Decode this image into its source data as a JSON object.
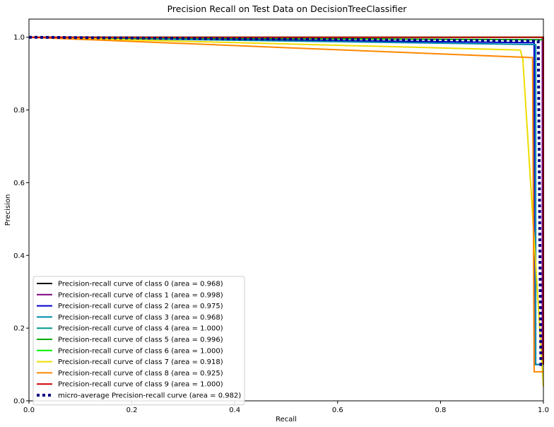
{
  "chart_data": {
    "type": "line",
    "title": "Precision Recall on Test Data on DecisionTreeClassifier",
    "xlabel": "Recall",
    "ylabel": "Precision",
    "xlim": [
      0.0,
      1.0
    ],
    "ylim": [
      0.0,
      1.05
    ],
    "xticks": [
      "0.0",
      "0.2",
      "0.4",
      "0.6",
      "0.8",
      "1.0"
    ],
    "yticks": [
      "0.0",
      "0.2",
      "0.4",
      "0.6",
      "0.8",
      "1.0"
    ],
    "grid": false,
    "legend_position": "lower-left",
    "series": [
      {
        "name": "Precision-recall curve of class 0 (area = 0.968)",
        "color": "#000000",
        "dash": "solid",
        "x": [
          0.0,
          0.0,
          1.0,
          1.0
        ],
        "y": [
          1.0,
          1.0,
          1.0,
          0.1
        ]
      },
      {
        "name": "Precision-recall curve of class 1 (area = 0.998)",
        "color": "#7f007f",
        "dash": "solid",
        "x": [
          0.0,
          0.0,
          0.998,
          0.998,
          1.0
        ],
        "y": [
          1.0,
          1.0,
          1.0,
          0.1,
          0.1
        ]
      },
      {
        "name": "Precision-recall curve of class 2 (area = 0.975)",
        "color": "#0000cc",
        "dash": "solid",
        "x": [
          0.0,
          0.0,
          0.98,
          0.982,
          0.982,
          1.0
        ],
        "y": [
          1.0,
          1.0,
          0.985,
          0.985,
          0.1,
          0.1
        ]
      },
      {
        "name": "Precision-recall curve of class 3 (area = 0.968)",
        "color": "#0088aa",
        "dash": "solid",
        "x": [
          0.0,
          0.0,
          0.983,
          0.985,
          0.985,
          1.0
        ],
        "y": [
          1.0,
          1.0,
          0.98,
          0.98,
          0.1,
          0.1
        ]
      },
      {
        "name": "Precision-recall curve of class 4 (area = 1.000)",
        "color": "#009988",
        "dash": "solid",
        "x": [
          0.0,
          0.0,
          1.0,
          1.0
        ],
        "y": [
          1.0,
          1.0,
          1.0,
          0.1
        ]
      },
      {
        "name": "Precision-recall curve of class 5 (area = 0.996)",
        "color": "#00aa00",
        "dash": "solid",
        "x": [
          0.0,
          0.0,
          1.0,
          1.0
        ],
        "y": [
          1.0,
          1.0,
          0.993,
          0.1
        ]
      },
      {
        "name": "Precision-recall curve of class 6 (area = 1.000)",
        "color": "#00ee00",
        "dash": "solid",
        "x": [
          0.0,
          0.0,
          1.0,
          1.0
        ],
        "y": [
          1.0,
          1.0,
          1.0,
          0.1
        ]
      },
      {
        "name": "Precision-recall curve of class 7 (area = 0.918)",
        "color": "#eedd00",
        "dash": "solid",
        "x": [
          0.0,
          0.0,
          0.955,
          0.96,
          1.0,
          1.0
        ],
        "y": [
          1.0,
          1.0,
          0.965,
          0.94,
          0.04,
          0.04
        ]
      },
      {
        "name": "Precision-recall curve of class 8 (area = 0.925)",
        "color": "#ff8800",
        "dash": "solid",
        "x": [
          0.0,
          0.0,
          0.979,
          0.982,
          1.0
        ],
        "y": [
          1.0,
          1.0,
          0.944,
          0.08,
          0.08
        ]
      },
      {
        "name": "Precision-recall curve of class 9 (area = 1.000)",
        "color": "#cc0000",
        "dash": "solid",
        "x": [
          0.0,
          0.0,
          1.0,
          1.0
        ],
        "y": [
          1.0,
          1.0,
          1.0,
          0.1
        ]
      },
      {
        "name": "micro-average Precision-recall curve (area = 0.982)",
        "color": "#000080",
        "dash": "dotted",
        "x": [
          0.0,
          0.0,
          0.985,
          0.99,
          0.995,
          1.0
        ],
        "y": [
          1.0,
          1.0,
          0.99,
          0.99,
          0.1,
          0.1
        ]
      }
    ]
  }
}
